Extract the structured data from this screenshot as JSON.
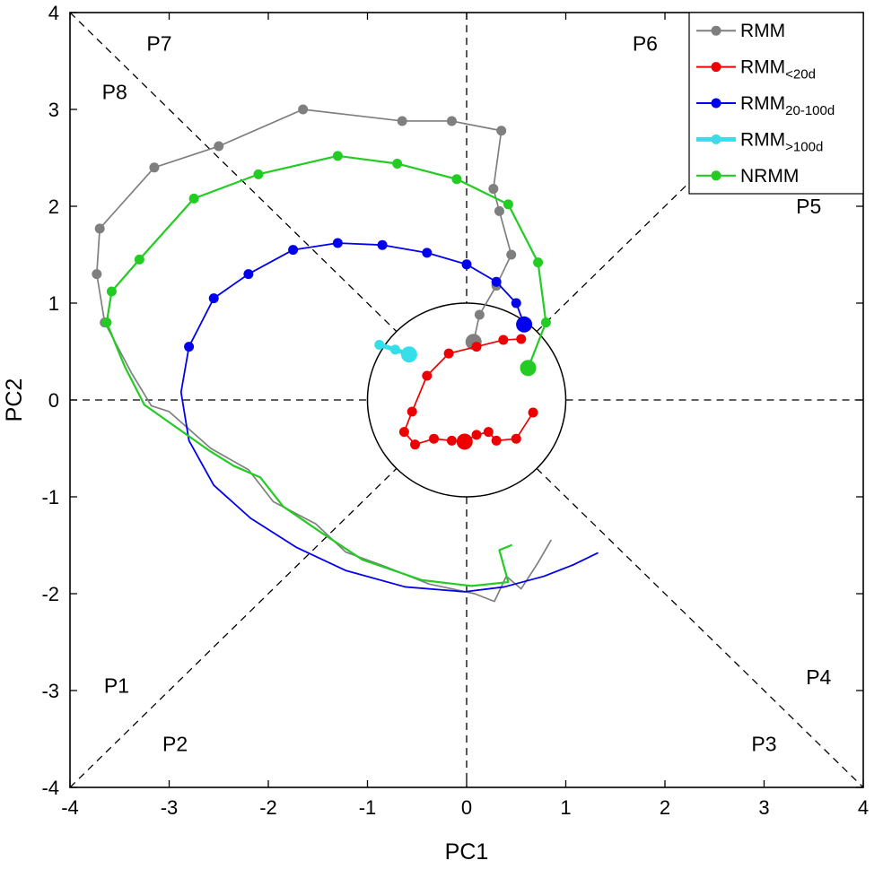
{
  "chart_data": {
    "type": "line",
    "title": "",
    "xlabel": "PC1",
    "ylabel": "PC2",
    "xlim": [
      -4,
      4
    ],
    "ylim": [
      -4,
      4
    ],
    "xticks": [
      -4,
      -3,
      -2,
      -1,
      0,
      1,
      2,
      3,
      4
    ],
    "yticks": [
      -4,
      -3,
      -2,
      -1,
      0,
      1,
      2,
      3,
      4
    ],
    "grid": false,
    "unit_circle_radius": 1,
    "guide_line_style": "dashed",
    "legend_position": "top-right",
    "colors": {
      "axis": "#000000",
      "background": "#ffffff",
      "guides": "#000000"
    },
    "phase_labels": [
      {
        "text": "P1",
        "x": -3.53,
        "y": -2.95
      },
      {
        "text": "P2",
        "x": -2.94,
        "y": -3.55
      },
      {
        "text": "P3",
        "x": 3.0,
        "y": -3.55
      },
      {
        "text": "P4",
        "x": 3.55,
        "y": -2.86
      },
      {
        "text": "P5",
        "x": 3.45,
        "y": 2.0
      },
      {
        "text": "P6",
        "x": 1.8,
        "y": 3.68
      },
      {
        "text": "P7",
        "x": -3.1,
        "y": 3.68
      },
      {
        "text": "P8",
        "x": -3.55,
        "y": 3.18
      }
    ],
    "series": [
      {
        "name": "RMM",
        "label": "RMM",
        "sub": "",
        "color": "#7F7F7F",
        "line_width": 1.7,
        "line": [
          [
            0.07,
            0.6
          ],
          [
            0.13,
            0.88
          ],
          [
            0.3,
            1.18
          ],
          [
            0.45,
            1.5
          ],
          [
            0.33,
            1.95
          ],
          [
            0.27,
            2.18
          ],
          [
            0.35,
            2.78
          ],
          [
            -0.15,
            2.88
          ],
          [
            -0.65,
            2.88
          ],
          [
            -1.65,
            3.0
          ],
          [
            -2.5,
            2.62
          ],
          [
            -3.15,
            2.4
          ],
          [
            -3.7,
            1.77
          ],
          [
            -3.73,
            1.3
          ],
          [
            -3.65,
            0.8
          ],
          [
            -3.38,
            0.28
          ],
          [
            -3.18,
            -0.06
          ],
          [
            -3.0,
            -0.12
          ],
          [
            -2.58,
            -0.5
          ],
          [
            -2.2,
            -0.72
          ],
          [
            -1.95,
            -1.05
          ],
          [
            -1.52,
            -1.28
          ],
          [
            -1.22,
            -1.57
          ],
          [
            -0.82,
            -1.72
          ],
          [
            -0.38,
            -1.9
          ],
          [
            0.08,
            -2.0
          ],
          [
            0.28,
            -2.08
          ],
          [
            0.4,
            -1.82
          ],
          [
            0.55,
            -1.95
          ],
          [
            0.72,
            -1.68
          ],
          [
            0.85,
            -1.45
          ]
        ],
        "dots": [
          [
            0.13,
            0.88
          ],
          [
            0.3,
            1.18
          ],
          [
            0.45,
            1.5
          ],
          [
            0.33,
            1.95
          ],
          [
            0.27,
            2.18
          ],
          [
            0.35,
            2.78
          ],
          [
            -0.15,
            2.88
          ],
          [
            -0.65,
            2.88
          ],
          [
            -1.65,
            3.0
          ],
          [
            -2.5,
            2.62
          ],
          [
            -3.15,
            2.4
          ],
          [
            -3.7,
            1.77
          ],
          [
            -3.73,
            1.3
          ],
          [
            -3.65,
            0.8
          ]
        ],
        "big_dot": [
          0.07,
          0.6
        ]
      },
      {
        "name": "RMM_lt_20d",
        "label": "RMM",
        "sub": "<20d",
        "color": "#EE0000",
        "line_width": 1.7,
        "line": [
          [
            0.55,
            0.63
          ],
          [
            0.37,
            0.62
          ],
          [
            0.1,
            0.55
          ],
          [
            -0.18,
            0.48
          ],
          [
            -0.4,
            0.25
          ],
          [
            -0.55,
            -0.12
          ],
          [
            -0.63,
            -0.33
          ],
          [
            -0.52,
            -0.46
          ],
          [
            -0.33,
            -0.4
          ],
          [
            -0.15,
            -0.42
          ],
          [
            -0.02,
            -0.43
          ],
          [
            0.1,
            -0.36
          ],
          [
            0.22,
            -0.33
          ],
          [
            0.3,
            -0.42
          ],
          [
            0.5,
            -0.4
          ],
          [
            0.67,
            -0.13
          ]
        ],
        "dots": [
          [
            0.55,
            0.63
          ],
          [
            0.37,
            0.62
          ],
          [
            0.1,
            0.55
          ],
          [
            -0.18,
            0.48
          ],
          [
            -0.4,
            0.25
          ],
          [
            -0.55,
            -0.12
          ],
          [
            -0.63,
            -0.33
          ],
          [
            -0.52,
            -0.46
          ],
          [
            -0.33,
            -0.4
          ],
          [
            -0.15,
            -0.42
          ],
          [
            0.1,
            -0.36
          ],
          [
            0.22,
            -0.33
          ],
          [
            0.3,
            -0.42
          ],
          [
            0.5,
            -0.4
          ],
          [
            0.67,
            -0.13
          ]
        ],
        "big_dot": [
          -0.02,
          -0.43
        ]
      },
      {
        "name": "RMM_20_100d",
        "label": "RMM",
        "sub": "20-100d",
        "color": "#0000EE",
        "line_width": 1.8,
        "line": [
          [
            0.58,
            0.78
          ],
          [
            0.5,
            1.0
          ],
          [
            0.3,
            1.22
          ],
          [
            0.0,
            1.4
          ],
          [
            -0.4,
            1.52
          ],
          [
            -0.85,
            1.6
          ],
          [
            -1.3,
            1.62
          ],
          [
            -1.75,
            1.55
          ],
          [
            -2.2,
            1.3
          ],
          [
            -2.55,
            1.05
          ],
          [
            -2.8,
            0.55
          ],
          [
            -2.88,
            0.08
          ],
          [
            -2.8,
            -0.42
          ],
          [
            -2.55,
            -0.88
          ],
          [
            -2.18,
            -1.22
          ],
          [
            -1.72,
            -1.52
          ],
          [
            -1.22,
            -1.76
          ],
          [
            -0.62,
            -1.93
          ],
          [
            -0.02,
            -1.98
          ],
          [
            0.38,
            -1.93
          ],
          [
            0.78,
            -1.82
          ],
          [
            1.08,
            -1.7
          ],
          [
            1.32,
            -1.58
          ]
        ],
        "dots": [
          [
            0.5,
            1.0
          ],
          [
            0.3,
            1.22
          ],
          [
            0.0,
            1.4
          ],
          [
            -0.4,
            1.52
          ],
          [
            -0.85,
            1.6
          ],
          [
            -1.3,
            1.62
          ],
          [
            -1.75,
            1.55
          ],
          [
            -2.2,
            1.3
          ],
          [
            -2.55,
            1.05
          ],
          [
            -2.8,
            0.55
          ]
        ],
        "big_dot": [
          0.58,
          0.78
        ]
      },
      {
        "name": "RMM_gt_100d",
        "label": "RMM",
        "sub": ">100d",
        "color": "#35DEE8",
        "line_width": 5,
        "line": [
          [
            -0.88,
            0.57
          ],
          [
            -0.72,
            0.52
          ],
          [
            -0.58,
            0.47
          ]
        ],
        "dots": [
          [
            -0.88,
            0.57
          ],
          [
            -0.72,
            0.52
          ]
        ],
        "big_dot": [
          -0.58,
          0.47
        ]
      },
      {
        "name": "NRMM",
        "label": "NRMM",
        "sub": "",
        "color": "#22CC22",
        "line_width": 2.2,
        "line": [
          [
            0.45,
            -1.5
          ],
          [
            0.33,
            -1.55
          ],
          [
            0.42,
            -1.88
          ],
          [
            0.05,
            -1.92
          ],
          [
            -0.45,
            -1.86
          ],
          [
            -1.05,
            -1.65
          ],
          [
            -1.45,
            -1.38
          ],
          [
            -1.85,
            -1.1
          ],
          [
            -2.08,
            -0.8
          ],
          [
            -2.35,
            -0.68
          ],
          [
            -2.6,
            -0.52
          ],
          [
            -3.25,
            -0.05
          ],
          [
            -3.45,
            0.35
          ],
          [
            -3.63,
            0.8
          ],
          [
            -3.58,
            1.12
          ],
          [
            -3.3,
            1.45
          ],
          [
            -2.75,
            2.08
          ],
          [
            -2.1,
            2.33
          ],
          [
            -1.3,
            2.52
          ],
          [
            -0.7,
            2.44
          ],
          [
            -0.1,
            2.28
          ],
          [
            0.42,
            2.02
          ],
          [
            0.72,
            1.42
          ],
          [
            0.8,
            0.8
          ],
          [
            0.62,
            0.33
          ]
        ],
        "dots": [
          [
            -3.63,
            0.8
          ],
          [
            -3.58,
            1.12
          ],
          [
            -3.3,
            1.45
          ],
          [
            -2.75,
            2.08
          ],
          [
            -2.1,
            2.33
          ],
          [
            -1.3,
            2.52
          ],
          [
            -0.7,
            2.44
          ],
          [
            -0.1,
            2.28
          ],
          [
            0.42,
            2.02
          ],
          [
            0.72,
            1.42
          ],
          [
            0.8,
            0.8
          ]
        ],
        "big_dot": [
          0.62,
          0.33
        ]
      }
    ]
  }
}
